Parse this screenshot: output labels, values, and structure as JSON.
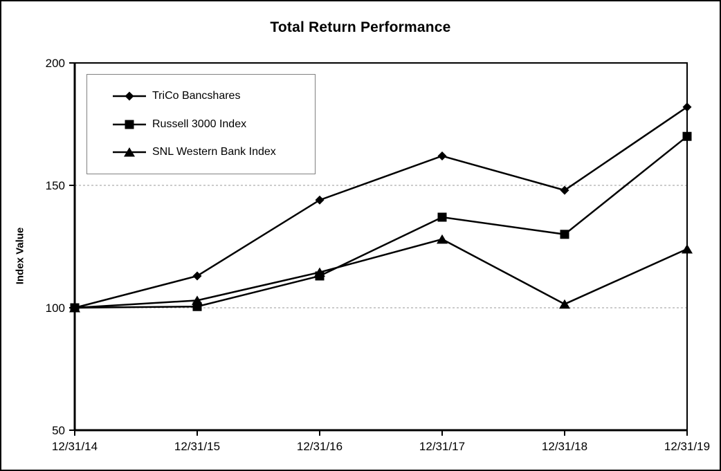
{
  "chart_data": {
    "type": "line",
    "title": "Total Return Performance",
    "ylabel": "Index Value",
    "xlabel": "",
    "x_labels": [
      "12/31/14",
      "12/31/15",
      "12/31/16",
      "12/31/17",
      "12/31/18",
      "12/31/19"
    ],
    "y_ticks": [
      200,
      150,
      100,
      50
    ],
    "ylim": [
      50,
      200
    ],
    "grid_values": [
      150,
      100
    ],
    "grid_style": "dashed",
    "grid_on": true,
    "legend_position": "upper-left",
    "line_color": "#000000",
    "grid_color": "#999999",
    "legend_border_color": "#808080",
    "series": [
      {
        "name": "TriCo Bancshares",
        "marker": "diamond",
        "values": [
          100,
          113,
          144,
          162,
          148,
          182
        ]
      },
      {
        "name": "Russell 3000 Index",
        "marker": "square",
        "values": [
          100,
          100.5,
          113,
          137,
          130,
          170
        ]
      },
      {
        "name": "SNL Western Bank Index",
        "marker": "triangle",
        "values": [
          100,
          103,
          114.5,
          128,
          101.5,
          124
        ]
      }
    ]
  }
}
